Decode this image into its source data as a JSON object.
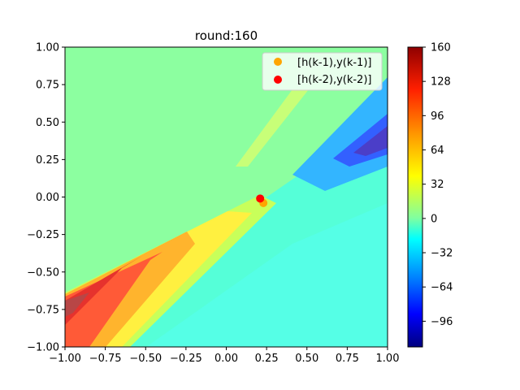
{
  "chart_data": {
    "type": "contourf",
    "title": "round:160",
    "xlabel": "",
    "ylabel": "",
    "xlim": [
      -1.0,
      1.0
    ],
    "ylim": [
      -1.0,
      1.0
    ],
    "x_ticks": [
      "−1.00",
      "−0.75",
      "−0.50",
      "−0.25",
      "0.00",
      "0.25",
      "0.50",
      "0.75",
      "1.00"
    ],
    "y_ticks": [
      "1.00",
      "0.75",
      "0.50",
      "0.25",
      "0.00",
      "−0.25",
      "−0.50",
      "−0.75",
      "−1.00"
    ],
    "x_tick_values": [
      -1.0,
      -0.75,
      -0.5,
      -0.25,
      0.0,
      0.25,
      0.5,
      0.75,
      1.0
    ],
    "y_tick_values": [
      1.0,
      0.75,
      0.5,
      0.25,
      0.0,
      -0.25,
      -0.5,
      -0.75,
      -1.0
    ],
    "colorbar": {
      "min": -120,
      "max": 160,
      "ticks": [
        160,
        128,
        96,
        64,
        32,
        0,
        -32,
        -64,
        -96
      ],
      "tick_labels": [
        "160",
        "128",
        "96",
        "64",
        "32",
        "0",
        "−32",
        "−64",
        "−96"
      ],
      "colormap": "jet"
    },
    "series": [
      {
        "name": "[h(k-1),y(k-1)]",
        "color": "#FFA500",
        "x": 0.23,
        "y": -0.04
      },
      {
        "name": "[h(k-2),y(k-2)]",
        "color": "#FF0000",
        "x": 0.21,
        "y": -0.01
      }
    ],
    "grid": false,
    "legend_position": "upper right"
  }
}
